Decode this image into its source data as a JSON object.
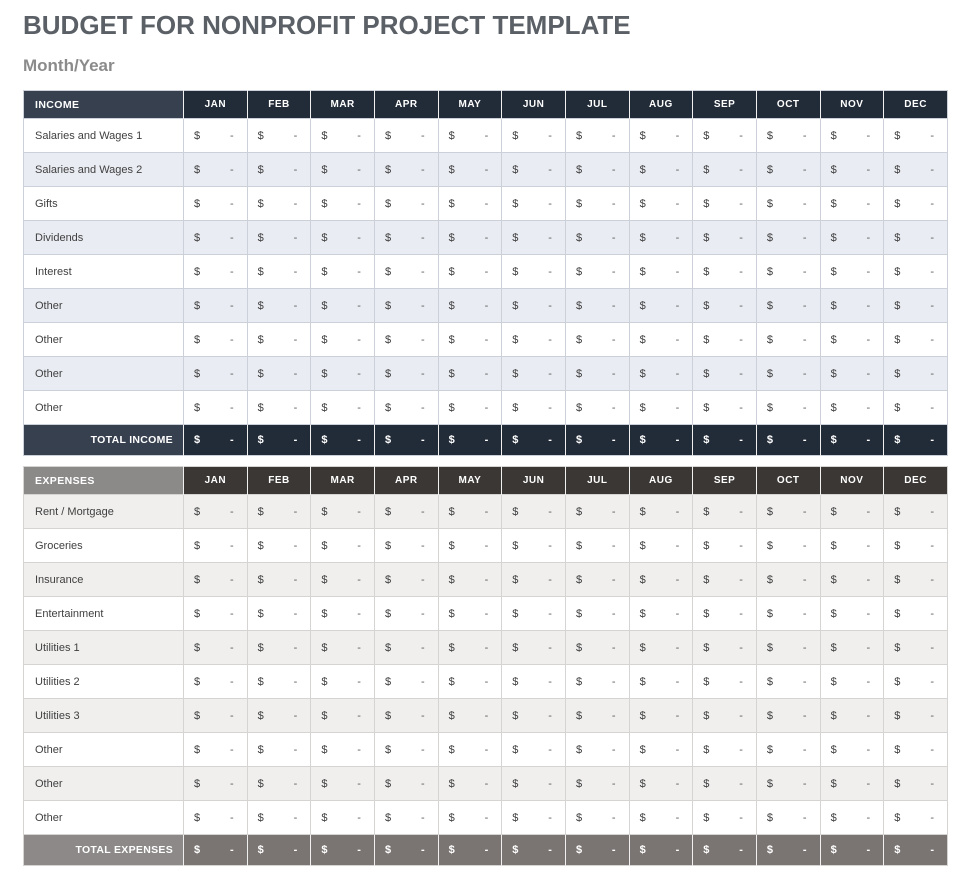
{
  "doc": {
    "title": "BUDGET FOR NONPROFIT PROJECT TEMPLATE",
    "subtitle": "Month/Year"
  },
  "months": [
    "JAN",
    "FEB",
    "MAR",
    "APR",
    "MAY",
    "JUN",
    "JUL",
    "AUG",
    "SEP",
    "OCT",
    "NOV",
    "DEC"
  ],
  "cell": {
    "currency": "$",
    "empty_value": "-"
  },
  "income": {
    "header": "INCOME",
    "rows": [
      "Salaries and Wages 1",
      "Salaries and Wages 2",
      "Gifts",
      "Dividends",
      "Interest",
      "Other",
      "Other",
      "Other",
      "Other"
    ],
    "total_label": "TOTAL INCOME"
  },
  "expenses": {
    "header": "EXPENSES",
    "rows": [
      "Rent / Mortgage",
      "Groceries",
      "Insurance",
      "Entertainment",
      "Utilities 1",
      "Utilities 2",
      "Utilities 3",
      "Other",
      "Other",
      "Other"
    ],
    "total_label": "TOTAL EXPENSES"
  },
  "colors": {
    "title": "#5a6066",
    "subtitle": "#8b8b8b",
    "header-text": "#ffffff",
    "body-text": "#3f3f3f",
    "dash-text": "#5c5c5c",
    "income-label-bg": "#36404f",
    "income-month-bg": "#222b38",
    "income-alt-row": "#e9ecf2",
    "income-border": "#ccd1d9",
    "expenses-label-bg": "#8c8989",
    "expenses-month-bg": "#3b3735",
    "expenses-total-label-bg": "#8c8988",
    "expenses-total-month-bg": "#7a7472",
    "expenses-alt-row": "#f0efee",
    "expenses-border": "#d6d4d2"
  }
}
